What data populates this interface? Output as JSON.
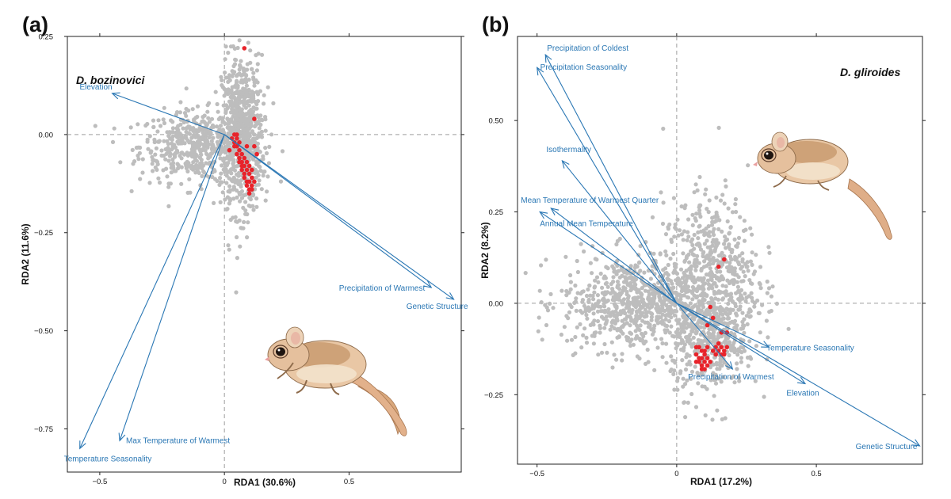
{
  "panels": [
    {
      "letter": "(a)",
      "species": "D. bozinovici",
      "xlabel": "RDA1 (30.6%)",
      "ylabel": "RDA2 (11.6%)"
    },
    {
      "letter": "(b)",
      "species": "D. gliroides",
      "xlabel": "RDA1 (17.2%)",
      "ylabel": "RDA2 (8.2%)"
    }
  ],
  "colors": {
    "points_neutral": "#bdbdbd",
    "points_outlier": "#e8232a",
    "arrows": "#2a77b4",
    "reference_lines": "#9e9e9e"
  },
  "chart_data": [
    {
      "type": "scatter",
      "title": "D. bozinovici",
      "xlabel": "RDA1 (30.6%)",
      "ylabel": "RDA2 (11.6%)",
      "xlim": [
        -0.63,
        0.95
      ],
      "ylim": [
        -0.86,
        0.25
      ],
      "xticks": [
        -0.5,
        0,
        0.5
      ],
      "xtick_labels": [
        "−0.5",
        "0",
        "0.5"
      ],
      "yticks": [
        0.25,
        0,
        -0.25,
        -0.5,
        -0.75
      ],
      "ytick_labels": [
        "0.25",
        "0.00",
        "−0.25",
        "−0.50",
        "−0.75"
      ],
      "reference_lines": {
        "x": 0,
        "y": 0
      },
      "series": [
        {
          "name": "",
          "color": "#bdbdbd",
          "clusters": [
            {
              "cx": -0.1,
              "cy": -0.03,
              "sx": 0.12,
              "sy": 0.045,
              "n": 520
            },
            {
              "cx": 0.07,
              "cy": 0.0,
              "sx": 0.04,
              "sy": 0.1,
              "n": 720
            }
          ]
        },
        {
          "name": "",
          "color": "#e8232a",
          "points": [
            [
              0.08,
              0.22
            ],
            [
              0.12,
              0.04
            ],
            [
              0.02,
              -0.04
            ],
            [
              0.03,
              -0.01
            ],
            [
              0.04,
              -0.02
            ],
            [
              0.05,
              -0.03
            ],
            [
              0.05,
              -0.05
            ],
            [
              0.06,
              -0.06
            ],
            [
              0.06,
              -0.07
            ],
            [
              0.07,
              -0.08
            ],
            [
              0.07,
              -0.09
            ],
            [
              0.08,
              -0.1
            ],
            [
              0.08,
              -0.11
            ],
            [
              0.09,
              -0.12
            ],
            [
              0.09,
              -0.13
            ],
            [
              0.1,
              -0.14
            ],
            [
              0.1,
              -0.15
            ],
            [
              0.11,
              -0.14
            ],
            [
              0.06,
              -0.04
            ],
            [
              0.07,
              -0.05
            ],
            [
              0.08,
              -0.06
            ],
            [
              0.09,
              -0.07
            ],
            [
              0.1,
              -0.08
            ],
            [
              0.11,
              -0.09
            ],
            [
              0.12,
              -0.03
            ],
            [
              0.13,
              -0.05
            ],
            [
              0.09,
              -0.03
            ],
            [
              0.05,
              -0.01
            ],
            [
              0.06,
              -0.02
            ],
            [
              0.04,
              0.0
            ],
            [
              0.1,
              -0.1
            ],
            [
              0.11,
              -0.11
            ],
            [
              0.12,
              -0.12
            ],
            [
              0.1,
              -0.12
            ],
            [
              0.11,
              -0.13
            ],
            [
              0.08,
              -0.08
            ],
            [
              0.09,
              -0.09
            ],
            [
              0.07,
              -0.07
            ],
            [
              0.04,
              -0.03
            ],
            [
              0.05,
              0.0
            ]
          ]
        }
      ],
      "vectors": [
        {
          "label": "Elevation",
          "x": -0.45,
          "y": 0.105,
          "label_anchor": "end",
          "label_dx": 0,
          "label_dy": -5
        },
        {
          "label": "Precipitation of Warmest",
          "x": 0.83,
          "y": -0.39,
          "label_anchor": "end",
          "label_dx": -8,
          "label_dy": 4
        },
        {
          "label": "Genetic Structure",
          "x": 0.92,
          "y": -0.42,
          "label_anchor": "end",
          "label_dx": 18,
          "label_dy": 12
        },
        {
          "label": "Max Temperature of Warmest",
          "x": -0.42,
          "y": -0.78,
          "label_anchor": "start",
          "label_dx": 8,
          "label_dy": 3
        },
        {
          "label": "Temperature Seasonality",
          "x": -0.58,
          "y": -0.8,
          "label_anchor": "start",
          "label_dx": -20,
          "label_dy": 16
        }
      ]
    },
    {
      "type": "scatter",
      "title": "D. gliroides",
      "xlabel": "RDA1 (17.2%)",
      "ylabel": "RDA2 (8.2%)",
      "xlim": [
        -0.57,
        0.88
      ],
      "ylim": [
        -0.44,
        0.73
      ],
      "xticks": [
        -0.5,
        0,
        0.5
      ],
      "xtick_labels": [
        "−0.5",
        "0",
        "0.5"
      ],
      "yticks": [
        0.5,
        0.25,
        0,
        -0.25
      ],
      "ytick_labels": [
        "0.50",
        "0.25",
        "0.00",
        "−0.25"
      ],
      "reference_lines": {
        "x": 0,
        "y": 0
      },
      "series": [
        {
          "name": "",
          "color": "#bdbdbd",
          "clusters": [
            {
              "cx": -0.15,
              "cy": 0.0,
              "sx": 0.13,
              "sy": 0.065,
              "n": 700
            },
            {
              "cx": 0.12,
              "cy": 0.05,
              "sx": 0.085,
              "sy": 0.12,
              "n": 720
            },
            {
              "cx": 0.12,
              "cy": -0.13,
              "sx": 0.07,
              "sy": 0.06,
              "n": 200
            }
          ]
        },
        {
          "name": "",
          "color": "#e8232a",
          "points": [
            [
              0.17,
              0.12
            ],
            [
              0.15,
              0.1
            ],
            [
              0.12,
              -0.01
            ],
            [
              0.13,
              -0.04
            ],
            [
              0.11,
              -0.06
            ],
            [
              0.16,
              -0.08
            ],
            [
              0.18,
              -0.08
            ],
            [
              0.07,
              -0.12
            ],
            [
              0.08,
              -0.12
            ],
            [
              0.09,
              -0.13
            ],
            [
              0.1,
              -0.13
            ],
            [
              0.07,
              -0.14
            ],
            [
              0.08,
              -0.15
            ],
            [
              0.09,
              -0.15
            ],
            [
              0.1,
              -0.14
            ],
            [
              0.11,
              -0.15
            ],
            [
              0.08,
              -0.16
            ],
            [
              0.09,
              -0.17
            ],
            [
              0.1,
              -0.16
            ],
            [
              0.11,
              -0.17
            ],
            [
              0.1,
              -0.18
            ],
            [
              0.09,
              -0.18
            ],
            [
              0.14,
              -0.12
            ],
            [
              0.15,
              -0.13
            ],
            [
              0.16,
              -0.12
            ],
            [
              0.16,
              -0.14
            ],
            [
              0.17,
              -0.13
            ],
            [
              0.15,
              -0.11
            ],
            [
              0.14,
              -0.14
            ],
            [
              0.17,
              -0.14
            ],
            [
              0.18,
              -0.12
            ],
            [
              0.13,
              -0.13
            ],
            [
              0.07,
              -0.16
            ],
            [
              0.12,
              -0.16
            ],
            [
              0.11,
              -0.12
            ]
          ]
        }
      ],
      "vectors": [
        {
          "label": "Precipitation of Coldest",
          "x": -0.47,
          "y": 0.68,
          "label_anchor": "start",
          "label_dx": 2,
          "label_dy": -5
        },
        {
          "label": "Precipitation Seasonality",
          "x": -0.5,
          "y": 0.645,
          "label_anchor": "start",
          "label_dx": 4,
          "label_dy": 3
        },
        {
          "label": "Isothermality",
          "x": -0.41,
          "y": 0.39,
          "label_anchor": "start",
          "label_dx": -20,
          "label_dy": -11
        },
        {
          "label": "Mean Temperature of Warmest Quarter",
          "x": -0.45,
          "y": 0.26,
          "label_anchor": "start",
          "label_dx": -38,
          "label_dy": -7
        },
        {
          "label": "Annual Mean Temperature",
          "x": -0.49,
          "y": 0.25,
          "label_anchor": "start",
          "label_dx": 0,
          "label_dy": 18
        },
        {
          "label": "Temperature Seasonality",
          "x": 0.33,
          "y": -0.12,
          "label_anchor": "start",
          "label_dx": -3,
          "label_dy": 4
        },
        {
          "label": "Precipitation of Warmest",
          "x": 0.2,
          "y": -0.18,
          "label_anchor": "middle",
          "label_dx": -2,
          "label_dy": 13
        },
        {
          "label": "Elevation",
          "x": 0.46,
          "y": -0.22,
          "label_anchor": "middle",
          "label_dx": -3,
          "label_dy": 15
        },
        {
          "label": "Genetic Structure",
          "x": 0.87,
          "y": -0.39,
          "label_anchor": "end",
          "label_dx": -3,
          "label_dy": 4
        }
      ]
    }
  ]
}
